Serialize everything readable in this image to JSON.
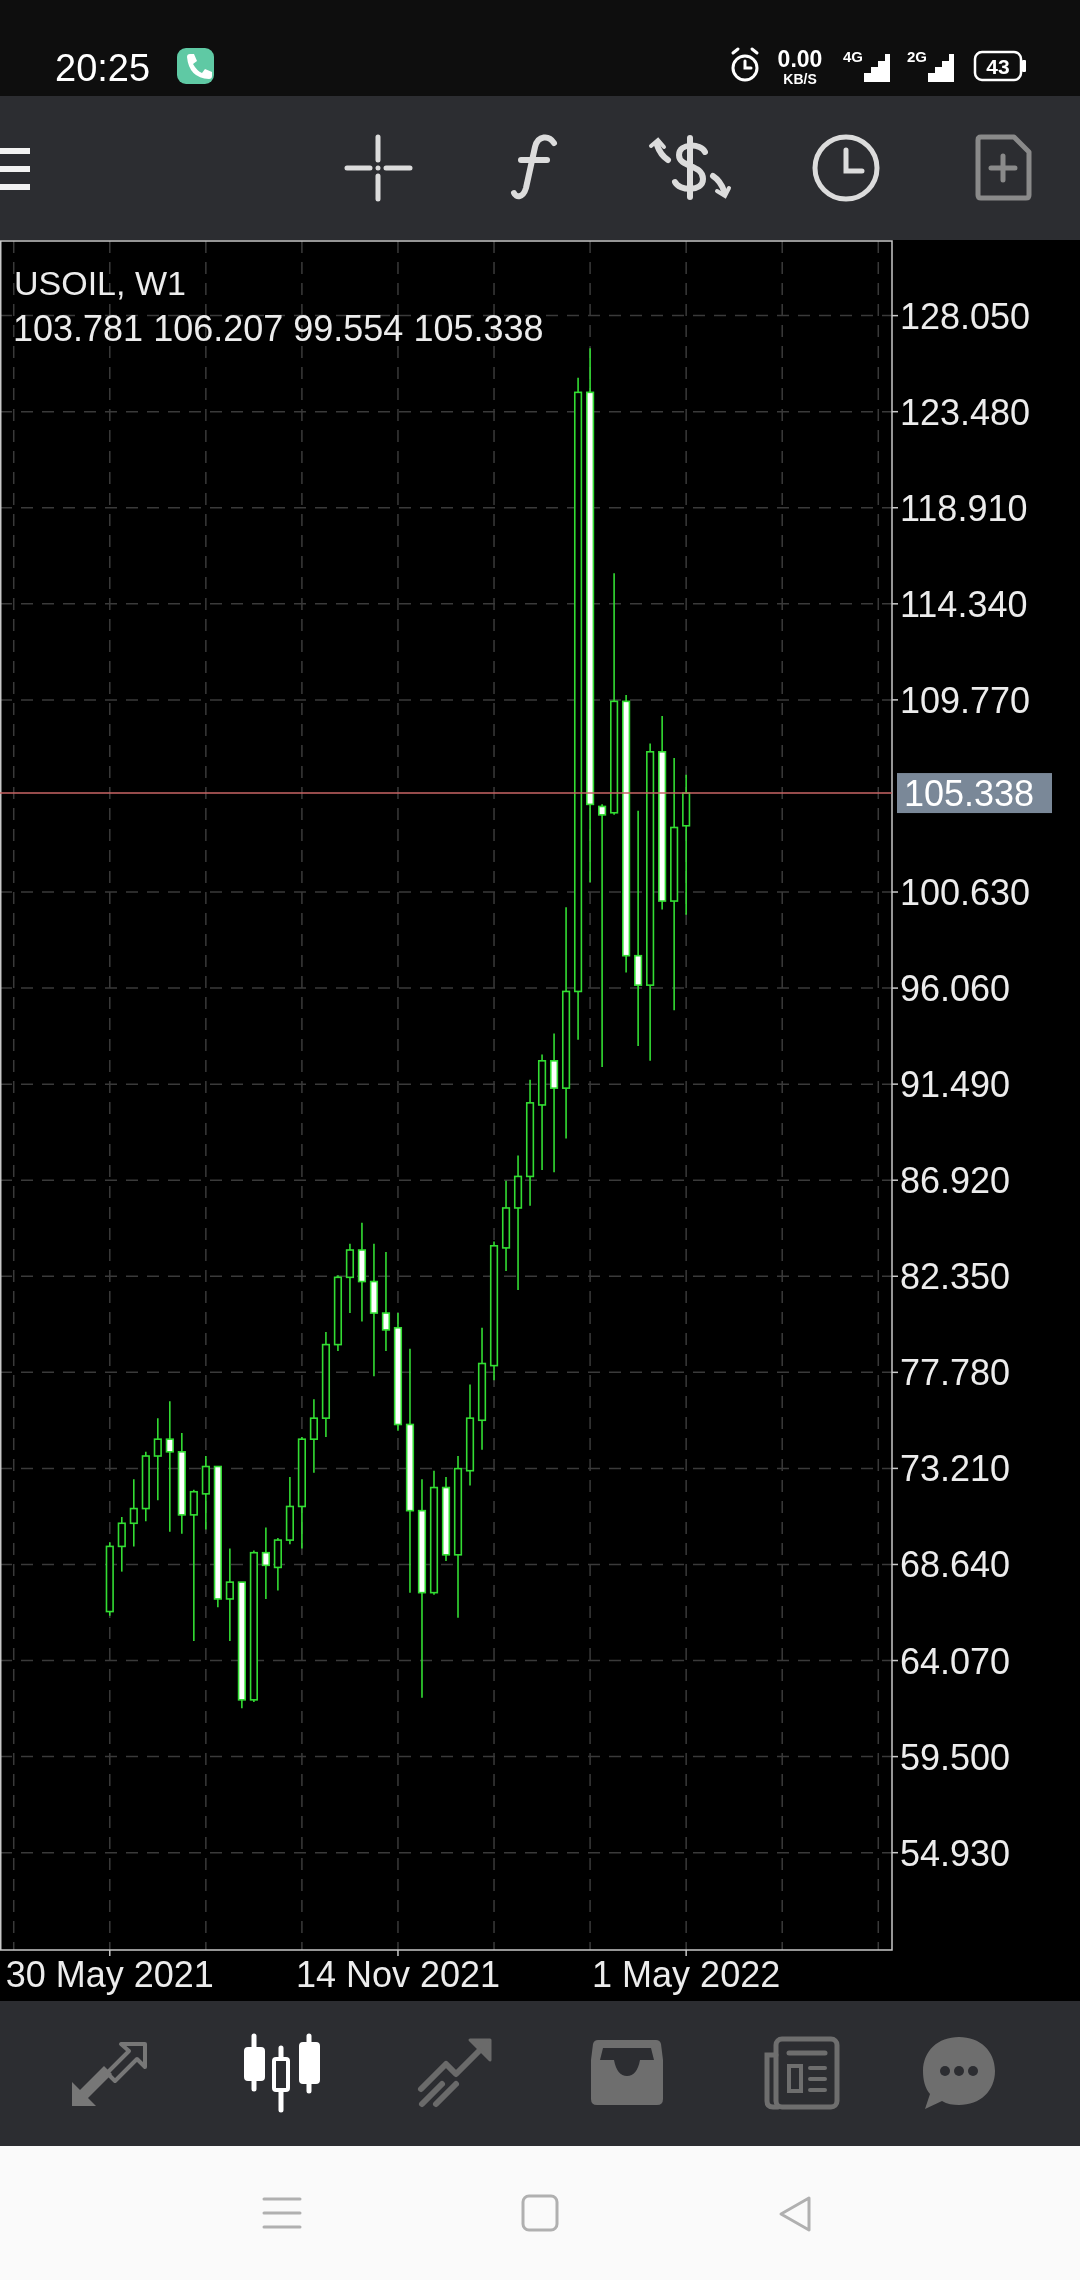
{
  "chart_data": {
    "type": "candlestick",
    "title": "USOIL, W1",
    "subtitle": "103.781 106.207 99.554 105.338",
    "x": [
      "2021-05-30",
      "2021-06-06",
      "2021-06-13",
      "2021-06-20",
      "2021-06-27",
      "2021-07-04",
      "2021-07-11",
      "2021-07-18",
      "2021-07-25",
      "2021-08-01",
      "2021-08-08",
      "2021-08-15",
      "2021-08-22",
      "2021-08-29",
      "2021-09-05",
      "2021-09-12",
      "2021-09-19",
      "2021-09-26",
      "2021-10-03",
      "2021-10-10",
      "2021-10-17",
      "2021-10-24",
      "2021-10-31",
      "2021-11-07",
      "2021-11-14",
      "2021-11-21",
      "2021-11-28",
      "2021-12-05",
      "2021-12-12",
      "2021-12-19",
      "2021-12-26",
      "2022-01-02",
      "2022-01-09",
      "2022-01-16",
      "2022-01-23",
      "2022-01-30",
      "2022-02-06",
      "2022-02-13",
      "2022-02-20",
      "2022-02-27",
      "2022-03-06",
      "2022-03-13",
      "2022-03-20",
      "2022-03-27",
      "2022-04-03",
      "2022-04-10",
      "2022-04-17",
      "2022-04-24",
      "2022-05-01"
    ],
    "ohlc": [
      [
        66.4,
        69.7,
        66.2,
        69.5
      ],
      [
        69.5,
        70.9,
        68.3,
        70.6
      ],
      [
        70.6,
        72.7,
        69.5,
        71.3
      ],
      [
        71.3,
        74.0,
        70.7,
        73.8
      ],
      [
        73.8,
        75.6,
        71.7,
        74.6
      ],
      [
        74.6,
        76.4,
        70.2,
        74.0
      ],
      [
        74.0,
        74.9,
        70.1,
        71.0
      ],
      [
        71.0,
        72.2,
        65.0,
        72.1
      ],
      [
        72.0,
        73.8,
        70.3,
        73.3
      ],
      [
        73.3,
        73.3,
        66.6,
        67.0
      ],
      [
        67.0,
        69.4,
        65.0,
        67.8
      ],
      [
        67.8,
        67.8,
        61.8,
        62.2
      ],
      [
        62.2,
        69.3,
        62.1,
        69.2
      ],
      [
        69.2,
        70.4,
        67.0,
        68.6
      ],
      [
        68.5,
        69.9,
        67.4,
        69.8
      ],
      [
        69.8,
        72.8,
        69.6,
        71.4
      ],
      [
        71.4,
        74.7,
        69.4,
        74.6
      ],
      [
        74.6,
        76.5,
        73.0,
        75.6
      ],
      [
        75.6,
        79.7,
        74.7,
        79.1
      ],
      [
        79.1,
        82.4,
        78.8,
        82.3
      ],
      [
        82.3,
        83.9,
        80.6,
        83.6
      ],
      [
        83.6,
        84.9,
        80.2,
        82.1
      ],
      [
        82.1,
        83.9,
        77.6,
        80.6
      ],
      [
        80.6,
        83.5,
        78.8,
        79.8
      ],
      [
        79.9,
        80.6,
        75.0,
        75.3
      ],
      [
        75.3,
        78.9,
        67.3,
        71.2
      ],
      [
        71.2,
        72.7,
        62.3,
        67.3
      ],
      [
        67.3,
        73.1,
        67.2,
        72.3
      ],
      [
        72.3,
        72.8,
        68.8,
        69.1
      ],
      [
        69.1,
        73.8,
        66.1,
        73.2
      ],
      [
        73.1,
        77.2,
        72.4,
        75.6
      ],
      [
        75.5,
        79.9,
        74.1,
        78.2
      ],
      [
        78.1,
        84.0,
        77.4,
        83.8
      ],
      [
        83.7,
        86.9,
        82.6,
        85.6
      ],
      [
        85.6,
        88.1,
        81.7,
        87.1
      ],
      [
        87.1,
        91.7,
        85.7,
        90.6
      ],
      [
        90.5,
        92.9,
        87.4,
        92.6
      ],
      [
        92.6,
        93.9,
        87.3,
        91.3
      ],
      [
        91.3,
        99.9,
        88.9,
        95.9
      ],
      [
        95.9,
        125.1,
        93.6,
        124.4
      ],
      [
        124.4,
        126.5,
        101.1,
        104.8
      ],
      [
        104.7,
        104.8,
        92.3,
        104.3
      ],
      [
        104.4,
        115.8,
        104.3,
        109.7
      ],
      [
        109.7,
        110.0,
        96.8,
        97.6
      ],
      [
        97.6,
        104.5,
        93.3,
        96.2
      ],
      [
        96.2,
        107.7,
        92.6,
        107.3
      ],
      [
        107.3,
        109.0,
        99.8,
        100.2
      ],
      [
        100.2,
        107.0,
        95.0,
        103.7
      ],
      [
        103.781,
        106.207,
        99.554,
        105.338
      ]
    ],
    "color": "#33dd33",
    "xlim": [
      "2021-03-27",
      "2022-08-29"
    ],
    "xticks": [
      {
        "value": "2021-04-04",
        "label": null
      },
      {
        "value": "2021-05-30",
        "label": "30 May 2021"
      },
      {
        "value": "2021-07-25",
        "label": null
      },
      {
        "value": "2021-09-19",
        "label": null
      },
      {
        "value": "2021-11-14",
        "label": "14 Nov 2021"
      },
      {
        "value": "2022-01-09",
        "label": null
      },
      {
        "value": "2022-03-06",
        "label": null
      },
      {
        "value": "2022-05-01",
        "label": "1 May 2022"
      },
      {
        "value": "2022-06-26",
        "label": null
      },
      {
        "value": "2022-08-21",
        "label": null
      }
    ],
    "ylim": [
      50.3,
      131.6
    ],
    "yticks": [
      {
        "value": 54.93,
        "label": "54.930"
      },
      {
        "value": 59.5,
        "label": "59.500"
      },
      {
        "value": 64.07,
        "label": "64.070"
      },
      {
        "value": 68.64,
        "label": "68.640"
      },
      {
        "value": 73.21,
        "label": "73.210"
      },
      {
        "value": 77.78,
        "label": "77.780"
      },
      {
        "value": 82.35,
        "label": "82.350"
      },
      {
        "value": 86.92,
        "label": "86.920"
      },
      {
        "value": 91.49,
        "label": "91.490"
      },
      {
        "value": 96.06,
        "label": "96.060"
      },
      {
        "value": 100.63,
        "label": "100.630"
      },
      {
        "value": 109.77,
        "label": "109.770"
      },
      {
        "value": 114.34,
        "label": "114.340"
      },
      {
        "value": 118.91,
        "label": "118.910"
      },
      {
        "value": 123.48,
        "label": "123.480"
      },
      {
        "value": 128.05,
        "label": "128.050"
      }
    ],
    "grid": true,
    "ref_lines": [
      {
        "axis": "y",
        "value": 105.338,
        "label": "105.338",
        "color": "#c86464"
      }
    ],
    "annotations": [
      "20:25",
      "0.00",
      "KB/S",
      "4G",
      "2G",
      "43"
    ]
  }
}
